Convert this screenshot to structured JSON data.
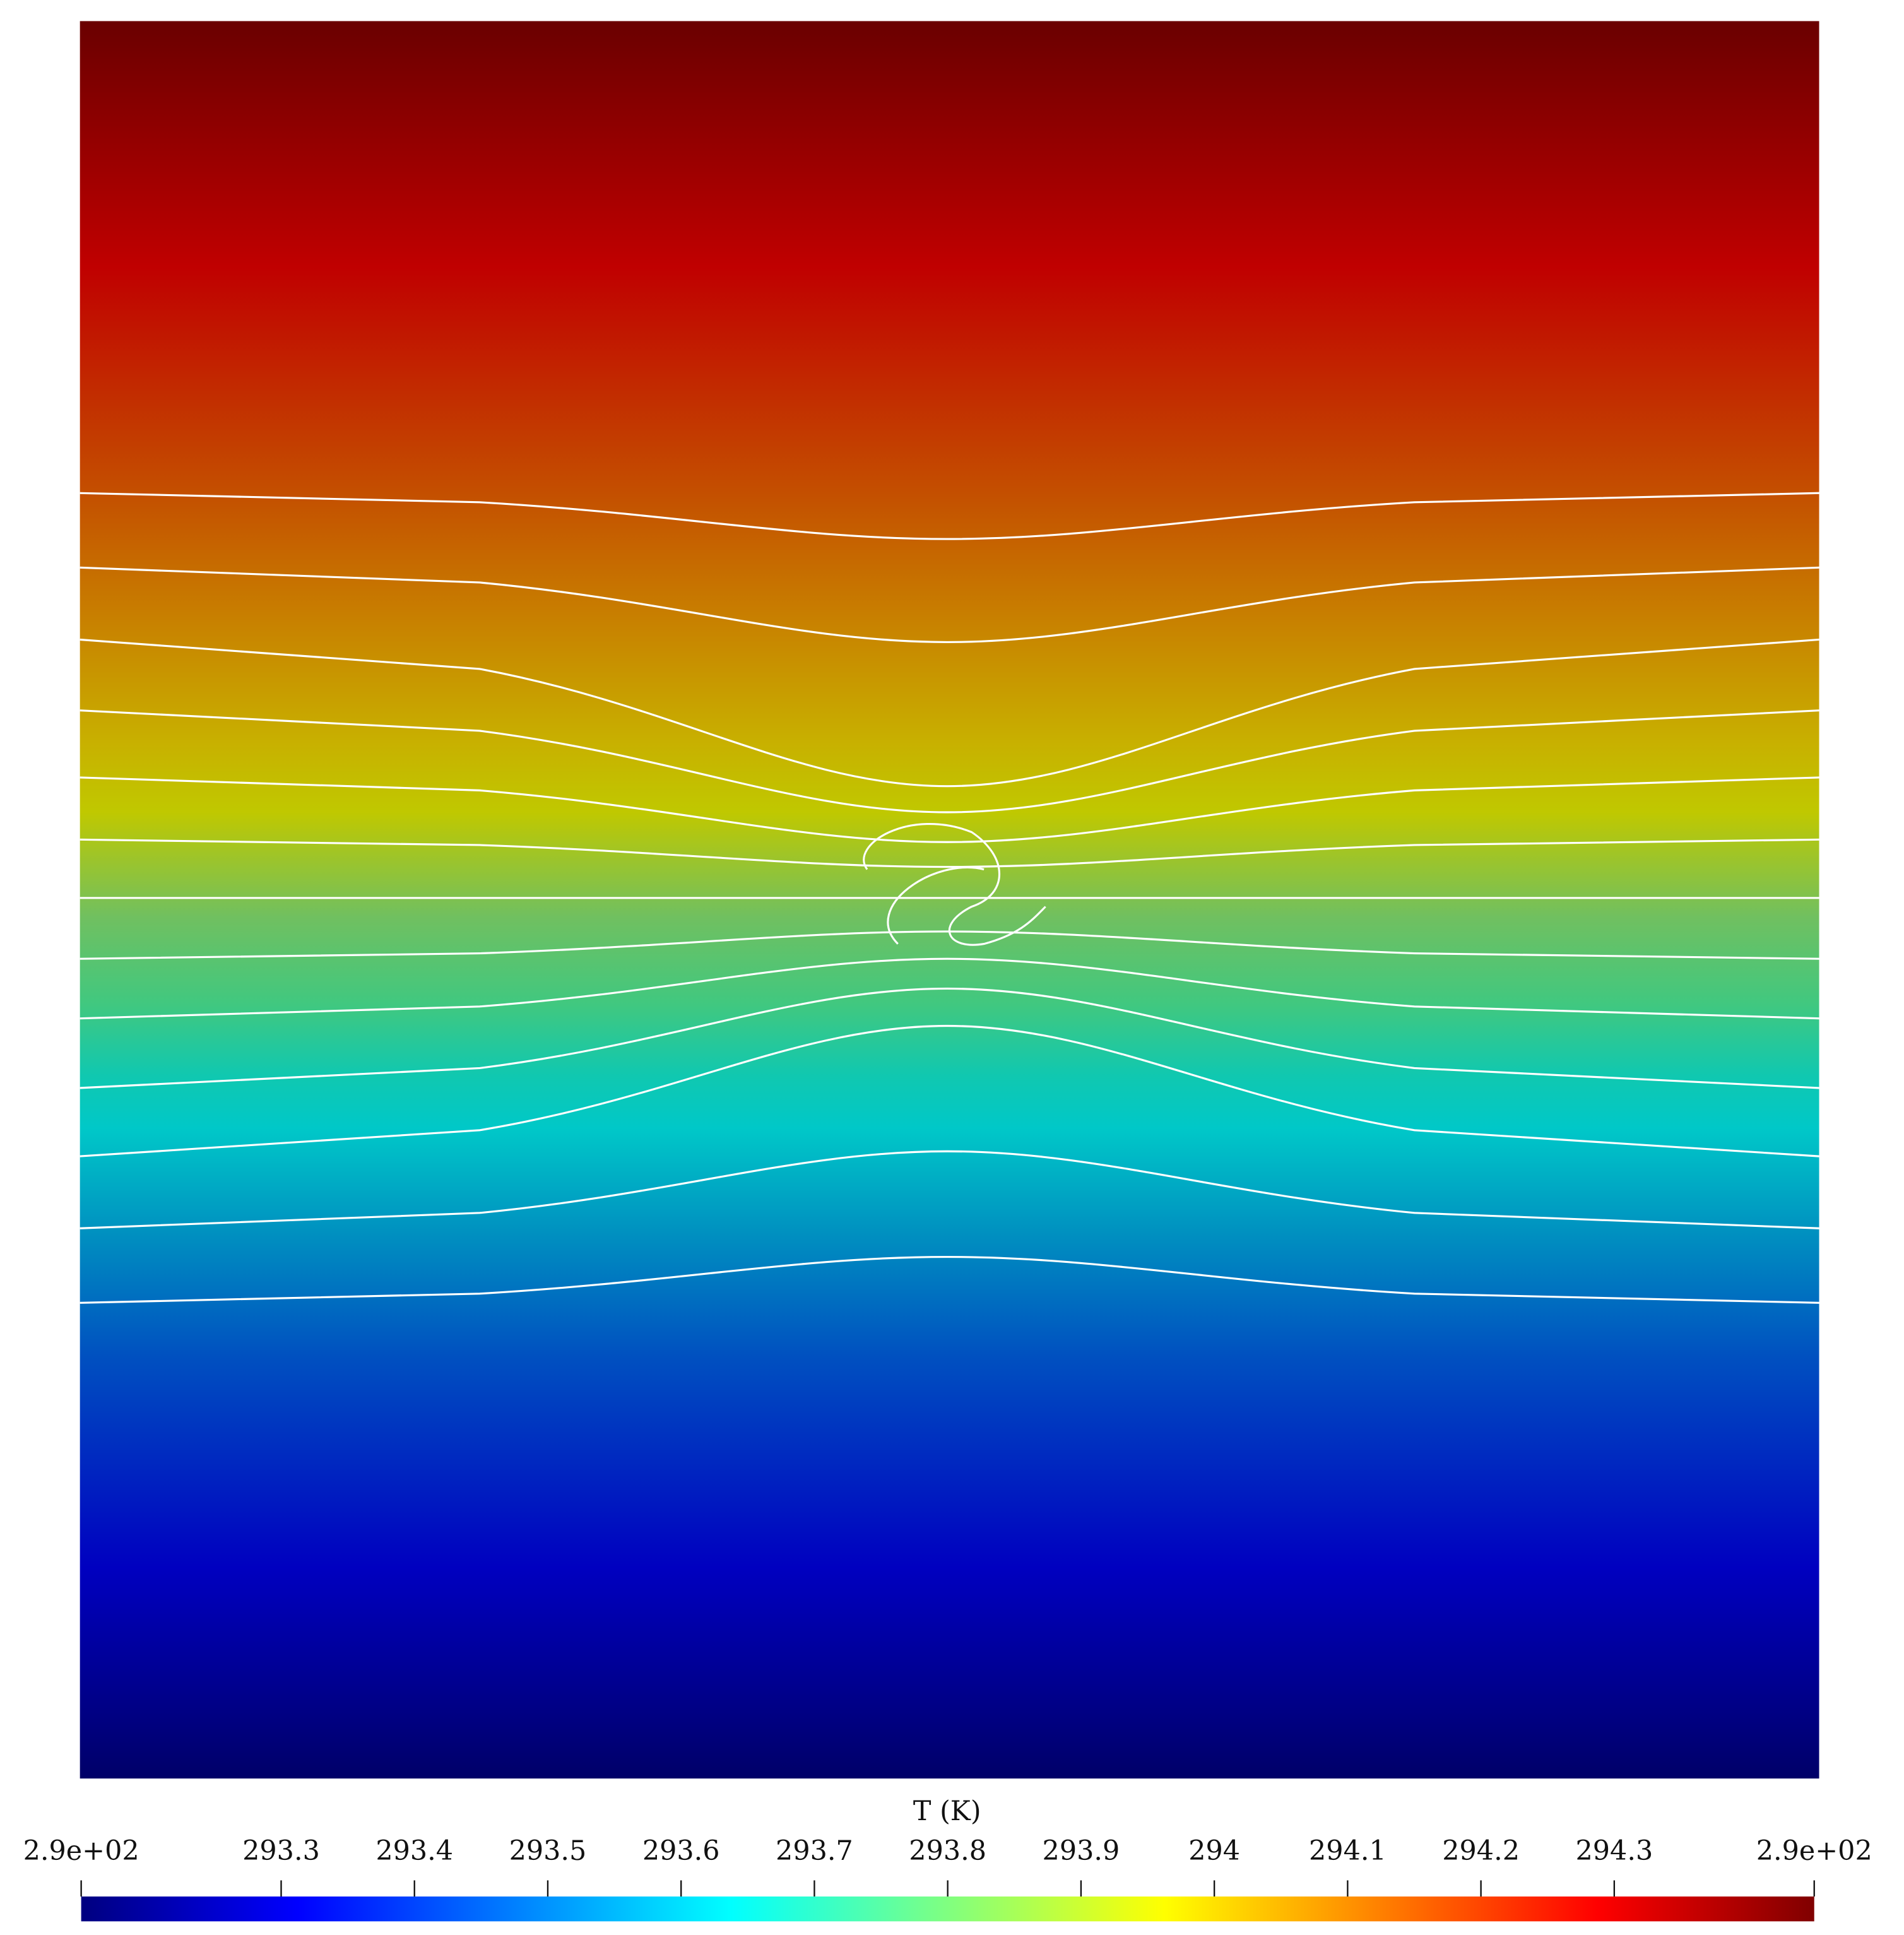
{
  "chart_data": {
    "type": "heatmap",
    "colorbar_label": "T (K)",
    "colormap": [
      "#000080",
      "#0000ff",
      "#0080ff",
      "#00ffff",
      "#80ff80",
      "#ffff00",
      "#ff8000",
      "#ff0000",
      "#800000"
    ],
    "xlim": [
      293.15,
      294.45
    ],
    "xticks": [
      {
        "value": 293.15,
        "label": "2.9e+02"
      },
      293.3,
      293.4,
      293.5,
      293.6,
      293.7,
      293.8,
      293.9,
      294,
      294.1,
      294.2,
      294.3,
      {
        "value": 294.45,
        "label": "2.9e+02"
      }
    ]
  }
}
